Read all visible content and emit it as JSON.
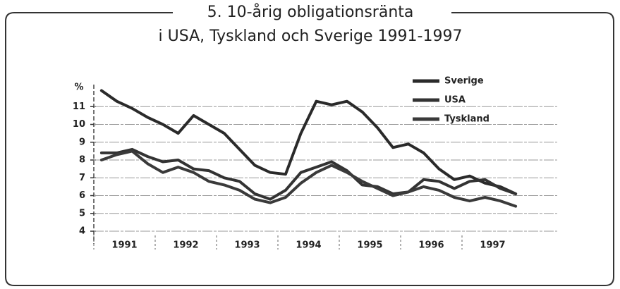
{
  "chart_data": {
    "type": "line",
    "title": "5. 10-årig obligationsränta",
    "subtitle": "i USA, Tyskland och Sverige 1991-1997",
    "y_label": "%",
    "categories": [
      "1991",
      null,
      null,
      null,
      "1992",
      null,
      null,
      null,
      "1993",
      null,
      null,
      null,
      "1994",
      null,
      null,
      null,
      "1995",
      null,
      null,
      null,
      "1996",
      null,
      null,
      null,
      "1997",
      null,
      null,
      null
    ],
    "series": [
      {
        "name": "Sverige",
        "color": "#2a2a2a",
        "values": [
          11.9,
          11.3,
          10.9,
          10.4,
          10.0,
          9.5,
          10.5,
          10.0,
          9.5,
          8.6,
          7.7,
          7.3,
          7.2,
          9.5,
          11.3,
          11.1,
          11.3,
          10.7,
          9.8,
          8.7,
          8.9,
          8.4,
          7.5,
          6.9,
          7.1,
          6.7,
          6.5,
          6.1
        ]
      },
      {
        "name": "USA",
        "color": "#333333",
        "values": [
          8.4,
          8.4,
          8.6,
          8.2,
          7.9,
          8.0,
          7.5,
          7.4,
          7.0,
          6.8,
          6.1,
          5.8,
          6.3,
          7.3,
          7.6,
          7.9,
          7.4,
          6.6,
          6.5,
          6.1,
          6.2,
          6.9,
          6.8,
          6.4,
          6.8,
          6.9,
          6.4,
          6.1
        ]
      },
      {
        "name": "Tyskland",
        "color": "#3a3a3a",
        "values": [
          8.0,
          8.3,
          8.5,
          7.8,
          7.3,
          7.6,
          7.3,
          6.8,
          6.6,
          6.3,
          5.8,
          5.6,
          5.9,
          6.7,
          7.3,
          7.7,
          7.3,
          6.8,
          6.4,
          6.0,
          6.2,
          6.5,
          6.3,
          5.9,
          5.7,
          5.9,
          5.7,
          5.4
        ]
      }
    ],
    "ylim": [
      4,
      12
    ],
    "yticks": [
      4,
      5,
      6,
      7,
      8,
      9,
      10,
      11
    ],
    "grid": true,
    "legend": "upper right"
  }
}
